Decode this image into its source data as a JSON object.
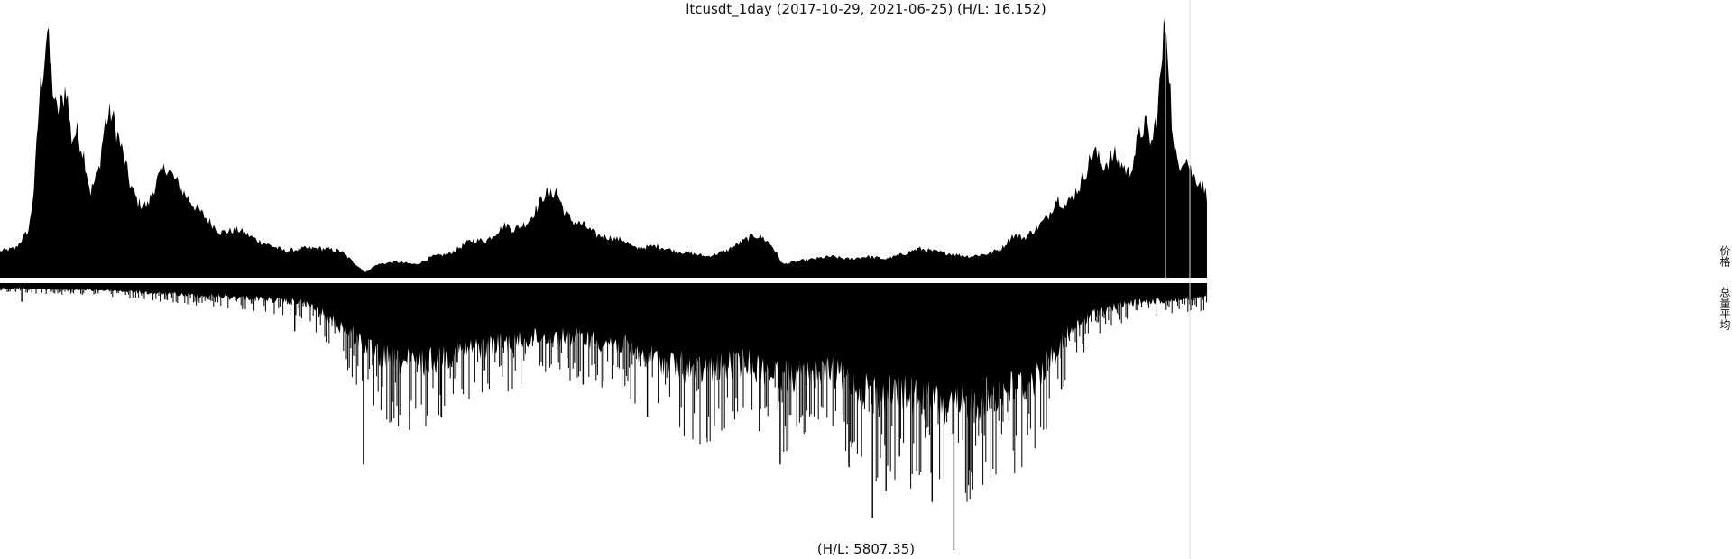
{
  "chart": {
    "title": "ltcusdt_1day (2017-10-29, 2021-06-25) (H/L: 16.152)",
    "volume_caption": "(H/L: 5807.35)"
  },
  "legend": {
    "price_label": "价格",
    "volume_label": "总量平均"
  },
  "chart_data": [
    {
      "type": "area",
      "name": "price",
      "title": "ltcusdt_1day (2017-10-29, 2021-06-25) (H/L: 16.152)",
      "x_range": [
        "2017-10-29",
        "2021-06-25"
      ],
      "high_low_ratio": 16.152,
      "y_relative_range": [
        0,
        1
      ],
      "legend": "价格",
      "color": "#000000",
      "points": [
        [
          "2017-10-29",
          0.1
        ],
        [
          "2017-11-15",
          0.11
        ],
        [
          "2017-11-30",
          0.18
        ],
        [
          "2017-12-06",
          0.35
        ],
        [
          "2017-12-12",
          0.7
        ],
        [
          "2017-12-17",
          0.82
        ],
        [
          "2017-12-20",
          0.94
        ],
        [
          "2017-12-25",
          0.75
        ],
        [
          "2017-12-30",
          0.62
        ],
        [
          "2018-01-06",
          0.66
        ],
        [
          "2018-01-10",
          0.73
        ],
        [
          "2018-01-16",
          0.52
        ],
        [
          "2018-01-22",
          0.55
        ],
        [
          "2018-01-30",
          0.46
        ],
        [
          "2018-02-06",
          0.32
        ],
        [
          "2018-02-15",
          0.4
        ],
        [
          "2018-02-22",
          0.58
        ],
        [
          "2018-03-01",
          0.62
        ],
        [
          "2018-03-08",
          0.54
        ],
        [
          "2018-03-15",
          0.45
        ],
        [
          "2018-03-22",
          0.35
        ],
        [
          "2018-03-31",
          0.28
        ],
        [
          "2018-04-10",
          0.27
        ],
        [
          "2018-04-20",
          0.36
        ],
        [
          "2018-05-01",
          0.42
        ],
        [
          "2018-05-08",
          0.38
        ],
        [
          "2018-05-20",
          0.32
        ],
        [
          "2018-06-01",
          0.27
        ],
        [
          "2018-06-15",
          0.22
        ],
        [
          "2018-06-30",
          0.17
        ],
        [
          "2018-07-20",
          0.18
        ],
        [
          "2018-08-10",
          0.14
        ],
        [
          "2018-08-25",
          0.12
        ],
        [
          "2018-09-10",
          0.1
        ],
        [
          "2018-10-01",
          0.11
        ],
        [
          "2018-10-20",
          0.11
        ],
        [
          "2018-11-10",
          0.1
        ],
        [
          "2018-11-20",
          0.07
        ],
        [
          "2018-12-07",
          0.02
        ],
        [
          "2018-12-20",
          0.05
        ],
        [
          "2019-01-10",
          0.06
        ],
        [
          "2019-02-01",
          0.05
        ],
        [
          "2019-02-20",
          0.08
        ],
        [
          "2019-03-10",
          0.09
        ],
        [
          "2019-04-03",
          0.14
        ],
        [
          "2019-04-20",
          0.14
        ],
        [
          "2019-05-12",
          0.2
        ],
        [
          "2019-05-20",
          0.18
        ],
        [
          "2019-06-05",
          0.21
        ],
        [
          "2019-06-18",
          0.28
        ],
        [
          "2019-06-24",
          0.32
        ],
        [
          "2019-06-30",
          0.31
        ],
        [
          "2019-07-06",
          0.33
        ],
        [
          "2019-07-15",
          0.25
        ],
        [
          "2019-07-25",
          0.21
        ],
        [
          "2019-08-05",
          0.2
        ],
        [
          "2019-08-20",
          0.16
        ],
        [
          "2019-09-05",
          0.15
        ],
        [
          "2019-09-20",
          0.14
        ],
        [
          "2019-10-01",
          0.11
        ],
        [
          "2019-10-25",
          0.12
        ],
        [
          "2019-11-15",
          0.1
        ],
        [
          "2019-12-05",
          0.09
        ],
        [
          "2019-12-20",
          0.08
        ],
        [
          "2020-01-10",
          0.1
        ],
        [
          "2020-01-25",
          0.13
        ],
        [
          "2020-02-10",
          0.16
        ],
        [
          "2020-02-20",
          0.15
        ],
        [
          "2020-03-01",
          0.12
        ],
        [
          "2020-03-13",
          0.05
        ],
        [
          "2020-03-25",
          0.06
        ],
        [
          "2020-04-15",
          0.07
        ],
        [
          "2020-05-05",
          0.08
        ],
        [
          "2020-05-25",
          0.07
        ],
        [
          "2020-06-15",
          0.08
        ],
        [
          "2020-07-05",
          0.07
        ],
        [
          "2020-07-25",
          0.09
        ],
        [
          "2020-08-10",
          0.11
        ],
        [
          "2020-08-25",
          0.1
        ],
        [
          "2020-09-15",
          0.09
        ],
        [
          "2020-10-05",
          0.08
        ],
        [
          "2020-10-25",
          0.09
        ],
        [
          "2020-11-10",
          0.11
        ],
        [
          "2020-11-22",
          0.16
        ],
        [
          "2020-12-05",
          0.15
        ],
        [
          "2020-12-20",
          0.19
        ],
        [
          "2020-12-31",
          0.23
        ],
        [
          "2021-01-10",
          0.3
        ],
        [
          "2021-01-20",
          0.27
        ],
        [
          "2021-02-05",
          0.35
        ],
        [
          "2021-02-20",
          0.48
        ],
        [
          "2021-03-01",
          0.42
        ],
        [
          "2021-03-15",
          0.46
        ],
        [
          "2021-03-31",
          0.39
        ],
        [
          "2021-04-10",
          0.52
        ],
        [
          "2021-04-17",
          0.58
        ],
        [
          "2021-04-25",
          0.5
        ],
        [
          "2021-05-01",
          0.62
        ],
        [
          "2021-05-06",
          0.8
        ],
        [
          "2021-05-10",
          1.0
        ],
        [
          "2021-05-14",
          0.8
        ],
        [
          "2021-05-19",
          0.47
        ],
        [
          "2021-05-25",
          0.43
        ],
        [
          "2021-06-01",
          0.46
        ],
        [
          "2021-06-10",
          0.38
        ],
        [
          "2021-06-18",
          0.36
        ],
        [
          "2021-06-25",
          0.31
        ]
      ]
    },
    {
      "type": "bar",
      "name": "volume",
      "caption": "(H/L: 5807.35)",
      "x_range": [
        "2017-10-29",
        "2021-06-25"
      ],
      "high_low_ratio": 5807.35,
      "orientation": "downward",
      "y_relative_range": [
        0,
        1
      ],
      "legend": "总量平均",
      "color": "#000000",
      "envelope": [
        [
          "2017-10-29",
          0.02
        ],
        [
          "2018-03-01",
          0.03
        ],
        [
          "2018-06-01",
          0.05
        ],
        [
          "2018-08-01",
          0.06
        ],
        [
          "2018-10-01",
          0.08
        ],
        [
          "2018-11-20",
          0.2
        ],
        [
          "2018-12-20",
          0.3
        ],
        [
          "2019-02-01",
          0.33
        ],
        [
          "2019-03-20",
          0.28
        ],
        [
          "2019-05-01",
          0.25
        ],
        [
          "2019-06-15",
          0.22
        ],
        [
          "2019-08-01",
          0.22
        ],
        [
          "2019-09-15",
          0.25
        ],
        [
          "2019-11-01",
          0.32
        ],
        [
          "2019-12-15",
          0.36
        ],
        [
          "2020-02-01",
          0.32
        ],
        [
          "2020-03-15",
          0.38
        ],
        [
          "2020-05-01",
          0.36
        ],
        [
          "2020-06-20",
          0.44
        ],
        [
          "2020-08-10",
          0.46
        ],
        [
          "2020-09-15",
          0.52
        ],
        [
          "2020-11-01",
          0.45
        ],
        [
          "2020-12-15",
          0.4
        ],
        [
          "2021-01-20",
          0.22
        ],
        [
          "2021-02-20",
          0.12
        ],
        [
          "2021-04-01",
          0.08
        ],
        [
          "2021-06-25",
          0.06
        ]
      ],
      "spikes": [
        [
          "2017-11-22",
          0.07
        ],
        [
          "2018-09-20",
          0.18
        ],
        [
          "2018-12-05",
          0.68
        ],
        [
          "2019-01-25",
          0.55
        ],
        [
          "2019-03-01",
          0.5
        ],
        [
          "2019-05-20",
          0.26
        ],
        [
          "2019-08-05",
          0.38
        ],
        [
          "2019-10-15",
          0.5
        ],
        [
          "2019-12-20",
          0.58
        ],
        [
          "2020-03-10",
          0.68
        ],
        [
          "2020-05-25",
          0.69
        ],
        [
          "2020-06-20",
          0.88
        ],
        [
          "2020-07-05",
          0.78
        ],
        [
          "2020-07-20",
          0.65
        ],
        [
          "2020-08-25",
          0.82
        ],
        [
          "2020-09-18",
          1.0
        ],
        [
          "2020-10-05",
          0.7
        ],
        [
          "2021-01-15",
          0.4
        ]
      ]
    }
  ]
}
